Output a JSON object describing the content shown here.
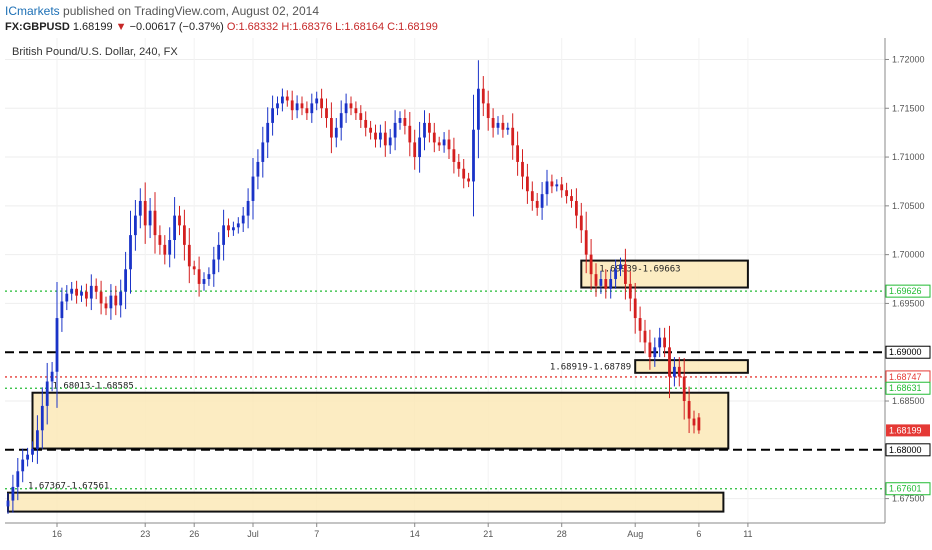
{
  "header": {
    "brand": "ICmarkets",
    "published": "published on TradingView.com, August 02, 2014",
    "symbol": "FX:GBPUSD",
    "last": "1.68199",
    "change_arrow": "▼",
    "change": "−0.00617 (−0.37%)",
    "open": "O:1.68332",
    "high": "H:1.68376",
    "low": "L:1.68164",
    "close": "C:1.68199"
  },
  "chart_data": {
    "type": "candlestick",
    "title": "British Pound/U.S. Dollar, 240, FX",
    "ylim": [
      1.6725,
      1.7222
    ],
    "y_ticks": [
      "1.72000",
      "1.71500",
      "1.71000",
      "1.70500",
      "1.70000",
      "1.69500",
      "1.68500",
      "1.67500"
    ],
    "x_ticks": [
      "16",
      "23",
      "26",
      "Jul",
      "7",
      "14",
      "21",
      "28",
      "Aug",
      "6",
      "11"
    ],
    "x_ticks_idx": [
      10,
      28,
      38,
      50,
      63,
      83,
      98,
      113,
      128,
      141,
      151
    ],
    "n_slots": 155,
    "closes": [
      1.6748,
      1.6762,
      1.6778,
      1.679,
      1.6795,
      1.6801,
      1.682,
      1.6845,
      1.687,
      1.688,
      1.6935,
      1.6952,
      1.696,
      1.6965,
      1.6958,
      1.6962,
      1.6955,
      1.6968,
      1.6962,
      1.695,
      1.6945,
      1.6958,
      1.6948,
      1.6962,
      1.6985,
      1.702,
      1.704,
      1.7055,
      1.703,
      1.7045,
      1.702,
      1.701,
      1.7,
      1.7015,
      1.704,
      1.703,
      1.701,
      1.6988,
      1.6985,
      1.697,
      1.6975,
      1.698,
      1.6995,
      1.701,
      1.703,
      1.7025,
      1.7028,
      1.7032,
      1.704,
      1.7055,
      1.708,
      1.7095,
      1.7115,
      1.7135,
      1.715,
      1.7155,
      1.7162,
      1.7158,
      1.7148,
      1.7155,
      1.715,
      1.7145,
      1.7155,
      1.716,
      1.715,
      1.714,
      1.712,
      1.713,
      1.7145,
      1.7155,
      1.715,
      1.7145,
      1.7138,
      1.713,
      1.7125,
      1.7118,
      1.7125,
      1.7112,
      1.712,
      1.7135,
      1.714,
      1.7132,
      1.7115,
      1.71,
      1.712,
      1.7135,
      1.7125,
      1.7115,
      1.7112,
      1.7118,
      1.7108,
      1.7095,
      1.7088,
      1.7078,
      1.7075,
      1.7128,
      1.717,
      1.7155,
      1.714,
      1.713,
      1.7135,
      1.7128,
      1.713,
      1.7112,
      1.7095,
      1.708,
      1.7065,
      1.7055,
      1.7048,
      1.7062,
      1.7075,
      1.707,
      1.7072,
      1.7066,
      1.706,
      1.7055,
      1.704,
      1.7025,
      1.7,
      1.698,
      1.6968,
      1.6975,
      1.6965,
      1.6975,
      1.6985,
      1.699,
      1.697,
      1.6955,
      1.6935,
      1.6922,
      1.691,
      1.6895,
      1.6905,
      1.6915,
      1.6905,
      1.6875,
      1.6885,
      1.6875,
      1.685,
      1.6832,
      1.6825,
      1.682
    ],
    "ohlc_last": {
      "open": 1.68332,
      "high": 1.68376,
      "low": 1.68164,
      "close": 1.68199
    },
    "colors": {
      "up": "#1a33c8",
      "down": "#d41f1f"
    },
    "levels": [
      {
        "name": "1.69626-level",
        "value": 1.69626,
        "color": "#22bb33",
        "style": "dotted",
        "label": "1.69626"
      },
      {
        "name": "1.69000-level",
        "value": 1.69,
        "color": "#000000",
        "style": "dashed",
        "label": "1.69000"
      },
      {
        "name": "1.68747-level",
        "value": 1.68747,
        "color": "#e53935",
        "style": "dotted",
        "label": "1.68747"
      },
      {
        "name": "1.68631-level",
        "value": 1.68631,
        "color": "#22bb33",
        "style": "dotted",
        "label": "1.68631"
      },
      {
        "name": "1.68000-level",
        "value": 1.68,
        "color": "#000000",
        "style": "dashed",
        "label": "1.68000"
      },
      {
        "name": "1.67601-level",
        "value": 1.67601,
        "color": "#22bb33",
        "style": "dotted",
        "label": "1.67601"
      }
    ],
    "current_price": {
      "value": 1.68199,
      "label": "1.68199",
      "color": "#e53935"
    },
    "zones": [
      {
        "name": "zone-1-69939",
        "label": "1.69939-1.69663",
        "top": 1.69939,
        "bottom": 1.69663,
        "start_idx": 117,
        "end_idx": 151,
        "label_pos": "inside"
      },
      {
        "name": "zone-1-68919",
        "label": "1.68919-1.68789",
        "top": 1.68919,
        "bottom": 1.68789,
        "start_idx": 128,
        "end_idx": 151,
        "label_pos": "left"
      },
      {
        "name": "zone-1-68613",
        "label": "1.68013-1.68585",
        "top": 1.68585,
        "bottom": 1.68013,
        "start_idx": 5,
        "end_idx": 147,
        "label_pos": "above"
      },
      {
        "name": "zone-1-67367",
        "label": "1.67367-1.67561",
        "top": 1.67561,
        "bottom": 1.67367,
        "start_idx": 0,
        "end_idx": 146,
        "label_pos": "above"
      }
    ]
  }
}
